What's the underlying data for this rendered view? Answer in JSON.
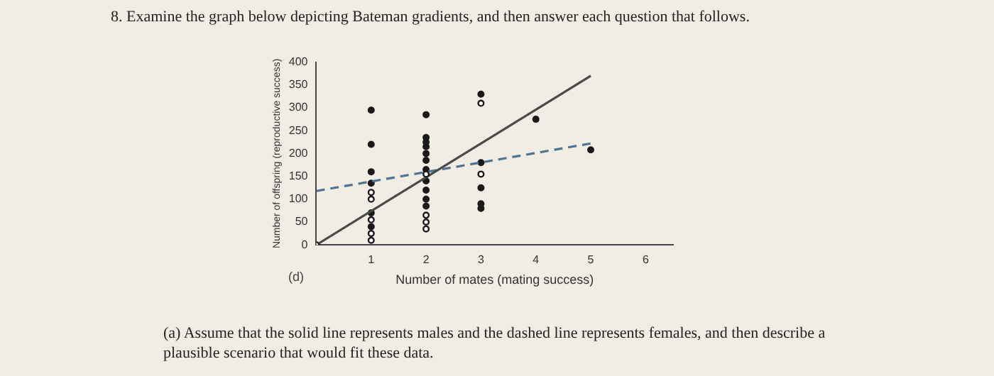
{
  "chart_data": {
    "type": "scatter",
    "title": "8. Examine the graph below depicting Bateman gradients, and then answer each question that follows.",
    "xlabel": "Number of mates (mating success)",
    "ylabel": "Number of offspring (reproductive success)",
    "annotations": [
      "(d)",
      "(a) Assume that the solid line represents males and the dashed line represents females, and then describe a plausible scenario that would fit these data."
    ],
    "xlim": [
      0,
      6.5
    ],
    "xticks": [
      1,
      2,
      3,
      4,
      5,
      6
    ],
    "ylim": [
      0,
      400
    ],
    "yticks": [
      0,
      50,
      100,
      150,
      200,
      250,
      300,
      350,
      400
    ],
    "grid": false,
    "legend": false,
    "series": [
      {
        "type": "scatter",
        "marker": "circle",
        "color": "#1a1a1a",
        "x": [
          1,
          1,
          1,
          1,
          1,
          1,
          2,
          2,
          2,
          2,
          2,
          2,
          2,
          2,
          2,
          2,
          2,
          3,
          3,
          3,
          3,
          3,
          4,
          5
        ],
        "values": [
          295,
          220,
          160,
          135,
          70,
          40,
          285,
          235,
          225,
          215,
          200,
          185,
          165,
          140,
          120,
          100,
          85,
          330,
          180,
          125,
          90,
          80,
          275,
          208
        ]
      },
      {
        "type": "scatter",
        "marker": "circle",
        "color": "#ffffff",
        "x": [
          0,
          1,
          1,
          1,
          1,
          1,
          2,
          2,
          2,
          2,
          3,
          3
        ],
        "values": [
          0,
          115,
          100,
          55,
          25,
          10,
          155,
          65,
          50,
          35,
          310,
          155
        ]
      },
      {
        "type": "line",
        "line_style": "solid",
        "marker": "none",
        "color": "#4a4a4a",
        "x": [
          0,
          5
        ],
        "values": [
          0,
          370
        ]
      },
      {
        "type": "line",
        "line_style": "dashed",
        "marker": "none",
        "color": "#4f7390",
        "x": [
          0,
          5
        ],
        "values": [
          118,
          222
        ]
      }
    ]
  }
}
